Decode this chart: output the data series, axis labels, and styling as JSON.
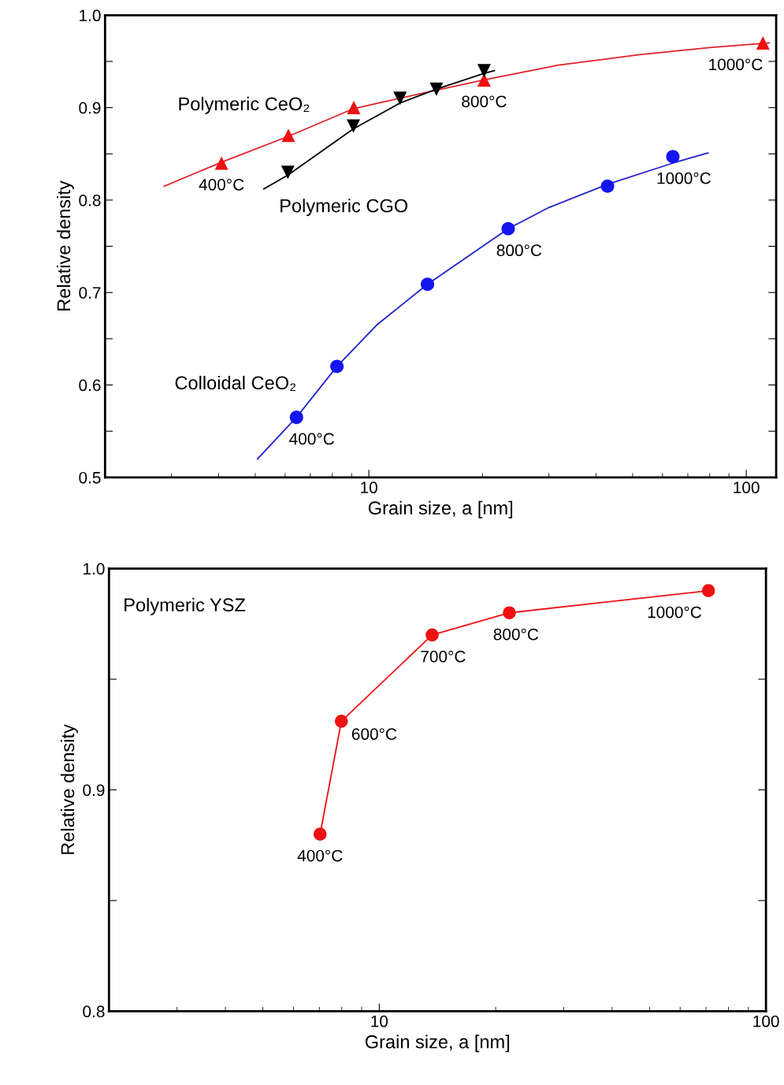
{
  "chart_data": [
    {
      "type": "scatter",
      "xlabel": "Grain size, a [nm]",
      "ylabel": "Relative density",
      "log": "x",
      "grid": false,
      "xlim": [
        2,
        120
      ],
      "xticks": [
        10,
        100
      ],
      "ylim": [
        0.5,
        1.0
      ],
      "yticks": [
        {
          "value": 0.5,
          "label": "0.5"
        },
        {
          "value": 0.55,
          "label": null
        },
        {
          "value": 0.6,
          "label": "0.6"
        },
        {
          "value": 0.65,
          "label": null
        },
        {
          "value": 0.7,
          "label": "0.7"
        },
        {
          "value": 0.75,
          "label": null
        },
        {
          "value": 0.8,
          "label": "0.8"
        },
        {
          "value": 0.85,
          "label": null
        },
        {
          "value": 0.9,
          "label": "0.9"
        },
        {
          "value": 0.95,
          "label": null
        },
        {
          "value": 1.0,
          "label": "1.0"
        }
      ],
      "series": [
        {
          "type": "line",
          "color": "#e0202a",
          "x": [
            2.87,
            4.07,
            6.12,
            9.12,
            14,
            20.2,
            31.8,
            51.6,
            80,
            115
          ],
          "values": [
            0.815,
            0.841,
            0.869,
            0.899,
            0.916,
            0.93,
            0.946,
            0.957,
            0.965,
            0.97
          ]
        },
        {
          "name": "Polymeric CeO₂",
          "marker": "triangle",
          "color": "#ee1111",
          "x": [
            4.07,
            6.12,
            9.12,
            20.2,
            110.7
          ],
          "values": [
            0.84,
            0.87,
            0.9,
            0.93,
            0.97
          ]
        },
        {
          "type": "line",
          "color": "#000000",
          "x": [
            5.27,
            6.1,
            9.1,
            12.1,
            15.1,
            20.2,
            21.5
          ],
          "values": [
            0.812,
            0.827,
            0.877,
            0.905,
            0.92,
            0.937,
            0.94
          ]
        },
        {
          "name": "Polymeric CGO",
          "marker": "triangle_down",
          "color": "#000000",
          "x": [
            6.1,
            9.1,
            12.1,
            15.1,
            20.2
          ],
          "values": [
            0.83,
            0.88,
            0.91,
            0.92,
            0.94
          ]
        },
        {
          "type": "line",
          "color": "#2222cc",
          "x": [
            5.07,
            6.43,
            8.23,
            10.5,
            14.3,
            23.4,
            30,
            42.9,
            63.9,
            79.1
          ],
          "values": [
            0.52,
            0.565,
            0.62,
            0.665,
            0.709,
            0.769,
            0.792,
            0.817,
            0.84,
            0.851
          ]
        },
        {
          "name": "Colloidal CeO₂",
          "marker": "circle",
          "color": "#1515ee",
          "x": [
            6.43,
            8.23,
            14.3,
            23.4,
            42.9,
            63.9
          ],
          "values": [
            0.565,
            0.62,
            0.709,
            0.769,
            0.815,
            0.847
          ]
        }
      ],
      "annotations": [
        {
          "text": "400°C",
          "x": 4.07,
          "y": 0.84
        },
        {
          "text": "800°C",
          "x": 20.2,
          "y": 0.93
        },
        {
          "text": "1000°C",
          "x": 110.7,
          "y": 0.97
        },
        {
          "text": "400°C",
          "x": 6.43,
          "y": 0.565
        },
        {
          "text": "800°C",
          "x": 23.4,
          "y": 0.769
        },
        {
          "text": "1000°C",
          "x": 63.9,
          "y": 0.847
        }
      ]
    },
    {
      "type": "line",
      "xlabel": "Grain size, a [nm]",
      "ylabel": "Relative density",
      "log": "x",
      "grid": false,
      "xlim": [
        2,
        100
      ],
      "xticks": [
        10,
        100
      ],
      "ylim": [
        0.8,
        1.0
      ],
      "yticks": [
        {
          "value": 0.8,
          "label": "0.8"
        },
        {
          "value": 0.85,
          "label": null
        },
        {
          "value": 0.9,
          "label": "0.9"
        },
        {
          "value": 0.95,
          "label": null
        },
        {
          "value": 1.0,
          "label": "1.0"
        }
      ],
      "series": [
        {
          "name": "Polymeric YSZ",
          "marker": "circle",
          "color": "#ee1111",
          "x": [
            7.03,
            7.98,
            13.7,
            21.7,
            71.0
          ],
          "values": [
            0.88,
            0.931,
            0.97,
            0.98,
            0.99
          ]
        }
      ],
      "annotations": [
        {
          "text": "400°C",
          "x": 7.03,
          "y": 0.88
        },
        {
          "text": "600°C",
          "x": 7.98,
          "y": 0.931
        },
        {
          "text": "700°C",
          "x": 13.7,
          "y": 0.97
        },
        {
          "text": "800°C",
          "x": 21.7,
          "y": 0.98
        },
        {
          "text": "1000°C",
          "x": 71.0,
          "y": 0.99
        }
      ]
    }
  ]
}
